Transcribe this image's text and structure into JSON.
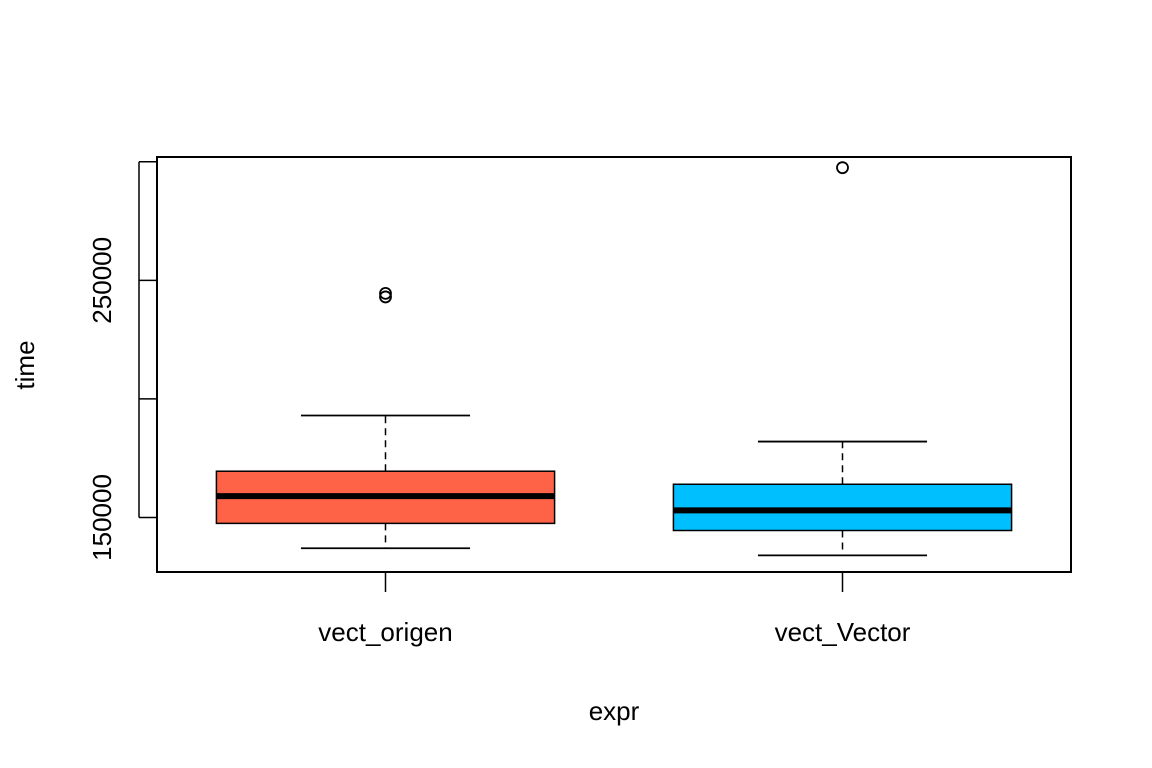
{
  "chart_data": {
    "type": "boxplot",
    "title": "",
    "xlabel": "expr",
    "ylabel": "time",
    "categories": [
      "vect_origen",
      "vect_Vector"
    ],
    "colors": [
      "#FF6347",
      "#00BFFF"
    ],
    "ylim": [
      127000,
      302000
    ],
    "y_ticks": [
      150000,
      200000,
      250000,
      300000
    ],
    "y_tick_labels": [
      "150000",
      "",
      "250000",
      ""
    ],
    "boxes": [
      {
        "name": "vect_origen",
        "whisker_low": 137000,
        "q1": 147500,
        "median": 159000,
        "q3": 169500,
        "whisker_high": 193000,
        "outliers": [
          243000,
          244500
        ]
      },
      {
        "name": "vect_Vector",
        "whisker_low": 134000,
        "q1": 144500,
        "median": 153000,
        "q3": 164000,
        "whisker_high": 182000,
        "outliers": [
          297500
        ]
      }
    ],
    "grid": false,
    "legend": "none"
  }
}
